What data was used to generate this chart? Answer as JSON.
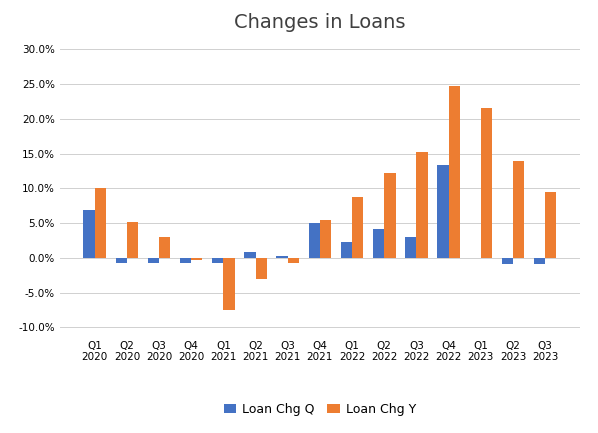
{
  "title": "Changes in Loans",
  "categories_line1": [
    "Q1",
    "Q2",
    "Q3",
    "Q4",
    "Q1",
    "Q2",
    "Q3",
    "Q4",
    "Q1",
    "Q2",
    "Q3",
    "Q4",
    "Q1",
    "Q2",
    "Q3"
  ],
  "categories_line2": [
    "2020",
    "2020",
    "2020",
    "2020",
    "2021",
    "2021",
    "2021",
    "2021",
    "2022",
    "2022",
    "2022",
    "2022",
    "2023",
    "2023",
    "2023"
  ],
  "loan_chg_q": [
    0.069,
    -0.008,
    -0.007,
    -0.008,
    -0.008,
    0.009,
    0.003,
    0.05,
    0.023,
    0.042,
    0.03,
    0.133,
    0.0,
    -0.009,
    -0.009
  ],
  "loan_chg_y": [
    0.1,
    0.052,
    0.03,
    -0.003,
    -0.075,
    -0.03,
    -0.008,
    0.055,
    0.087,
    0.122,
    0.153,
    0.247,
    0.215,
    0.14,
    0.095
  ],
  "bar_color_q": "#4472C4",
  "bar_color_y": "#ED7D31",
  "legend_labels": [
    "Loan Chg Q",
    "Loan Chg Y"
  ],
  "ylim": [
    -0.115,
    0.315
  ],
  "yticks": [
    -0.1,
    -0.05,
    0.0,
    0.05,
    0.1,
    0.15,
    0.2,
    0.25,
    0.3
  ],
  "background_color": "#FFFFFF",
  "title_fontsize": 14,
  "tick_fontsize": 7.5,
  "bar_width": 0.35
}
